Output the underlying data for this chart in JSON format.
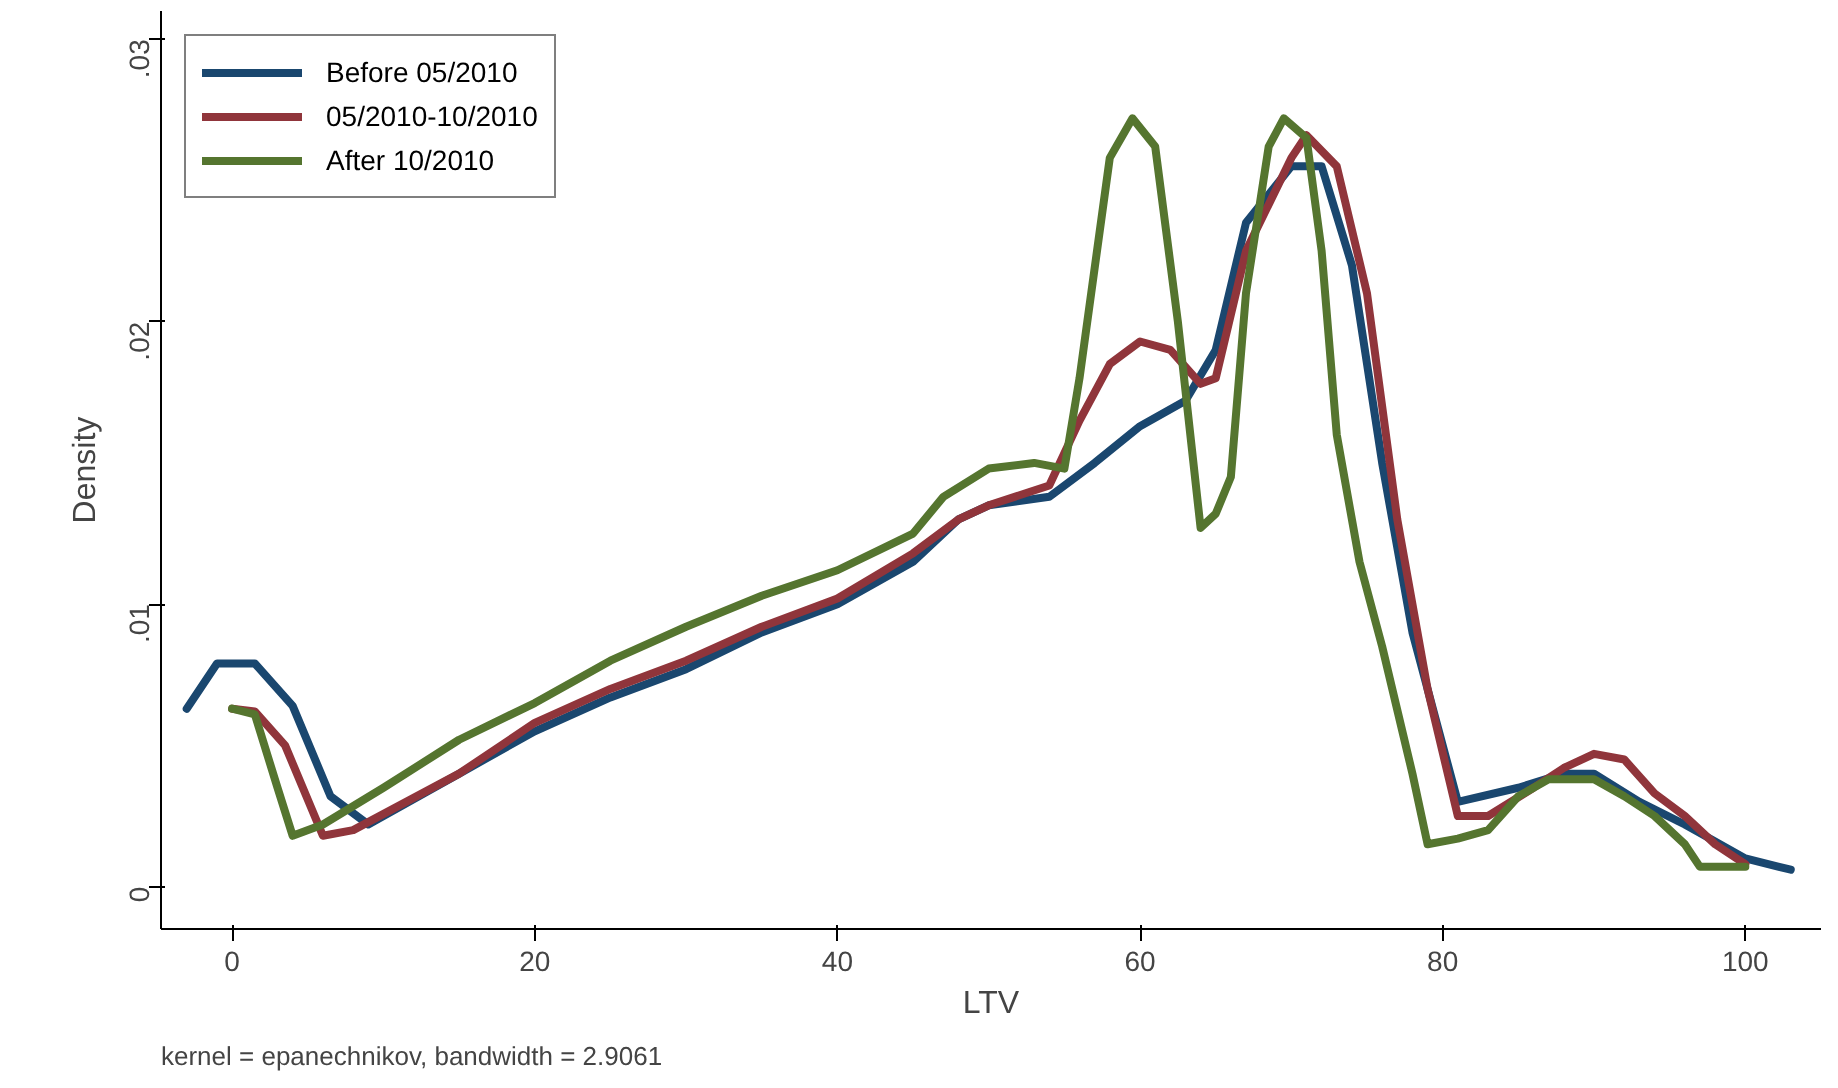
{
  "chart_data": {
    "type": "line",
    "xlabel": "LTV",
    "ylabel": "Density",
    "annotations": [
      "kernel = epanechnikov, bandwidth = 2.9061"
    ],
    "xlim": [
      -4.7,
      105
    ],
    "ylim": [
      -0.0015,
      0.031
    ],
    "xticks": [
      0,
      20,
      40,
      60,
      80,
      100
    ],
    "yticks": [
      {
        "value": 0,
        "label": "0"
      },
      {
        "value": 0.01,
        "label": ".01"
      },
      {
        "value": 0.02,
        "label": ".02"
      },
      {
        "value": 0.03,
        "label": ".03"
      }
    ],
    "grid": false,
    "legend": "top left",
    "marker": "none",
    "line_style": "solid",
    "series": [
      {
        "name": "Before 05/2010",
        "color": "#1a476f",
        "x": [
          -3,
          -1,
          1.5,
          4,
          6.5,
          9,
          15,
          20,
          25,
          30,
          35,
          40,
          45,
          48,
          50,
          54,
          57,
          60,
          63,
          65,
          67,
          70,
          72,
          74,
          76,
          78,
          81,
          85,
          88,
          90,
          93,
          96,
          100,
          103
        ],
        "values": [
          0.0063,
          0.0079,
          0.0079,
          0.0064,
          0.0032,
          0.0022,
          0.004,
          0.0055,
          0.0067,
          0.0077,
          0.009,
          0.01,
          0.0115,
          0.013,
          0.0135,
          0.0138,
          0.015,
          0.0163,
          0.0172,
          0.019,
          0.0235,
          0.0255,
          0.0255,
          0.022,
          0.015,
          0.009,
          0.003,
          0.0035,
          0.004,
          0.004,
          0.003,
          0.0022,
          0.001,
          0.0006
        ]
      },
      {
        "name": "05/2010-10/2010",
        "color": "#90353b",
        "x": [
          0,
          1.5,
          3.5,
          6,
          8,
          15,
          20,
          25,
          30,
          35,
          40,
          45,
          48,
          50,
          54,
          56,
          58,
          60,
          62,
          64,
          65,
          67,
          70,
          71,
          73,
          75,
          77,
          79,
          81,
          83,
          86,
          88,
          90,
          92,
          94,
          96,
          98,
          100
        ],
        "values": [
          0.0063,
          0.0062,
          0.005,
          0.0018,
          0.002,
          0.004,
          0.0058,
          0.007,
          0.008,
          0.0092,
          0.0102,
          0.0118,
          0.013,
          0.0135,
          0.0142,
          0.0165,
          0.0185,
          0.0193,
          0.019,
          0.0178,
          0.018,
          0.0225,
          0.0258,
          0.0266,
          0.0255,
          0.021,
          0.013,
          0.007,
          0.0025,
          0.0025,
          0.0035,
          0.0042,
          0.0047,
          0.0045,
          0.0033,
          0.0025,
          0.0015,
          0.0008
        ]
      },
      {
        "name": "After 10/2010",
        "color": "#55752f",
        "x": [
          0,
          1.5,
          3,
          4,
          6,
          10,
          15,
          20,
          25,
          30,
          35,
          40,
          45,
          47,
          50,
          53,
          55,
          56,
          58,
          59.5,
          61,
          62.5,
          64,
          65,
          66,
          67,
          68.5,
          69.5,
          71,
          72,
          73,
          74.5,
          76,
          78,
          79,
          81,
          83,
          85,
          87,
          90,
          92,
          94,
          96,
          97,
          100
        ],
        "values": [
          0.0063,
          0.0061,
          0.0035,
          0.0018,
          0.0022,
          0.0035,
          0.0052,
          0.0065,
          0.008,
          0.0092,
          0.0103,
          0.0112,
          0.0125,
          0.0138,
          0.0148,
          0.015,
          0.0148,
          0.018,
          0.0258,
          0.0272,
          0.0262,
          0.02,
          0.0127,
          0.0132,
          0.0145,
          0.021,
          0.0262,
          0.0272,
          0.0265,
          0.0225,
          0.016,
          0.0115,
          0.0085,
          0.004,
          0.0015,
          0.0017,
          0.002,
          0.0032,
          0.0038,
          0.0038,
          0.0032,
          0.0025,
          0.0015,
          0.0007,
          0.0007
        ]
      }
    ]
  }
}
